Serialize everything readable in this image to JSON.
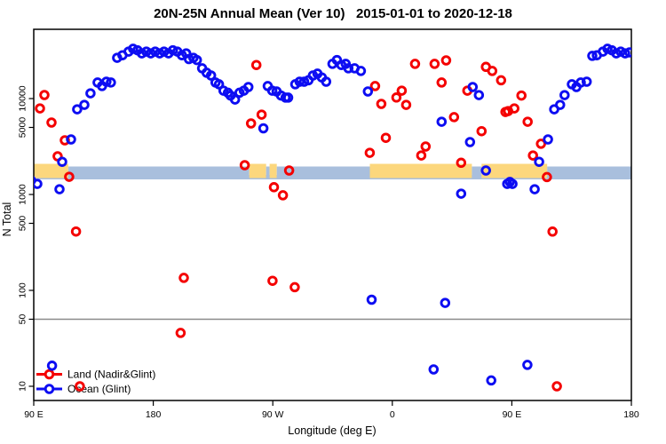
{
  "title": "20N-25N Annual Mean (Ver 10)   2015-01-01 to 2020-12-18",
  "legend": {
    "items": [
      {
        "label": "Land (Nadir&Glint)",
        "color": "#f40000"
      },
      {
        "label": "Ocean (Glint)",
        "color": "#0d0df2"
      }
    ]
  },
  "chart_data": {
    "type": "scatter",
    "title": "20N-25N Annual Mean (Ver 10)   2015-01-01 to 2020-12-18",
    "xlabel": "Longitude (deg E)",
    "ylabel": "N Total",
    "y_scale": "log",
    "ylim": [
      9,
      40000
    ],
    "xlim_deg_continuous": [
      90,
      540
    ],
    "grid": false,
    "legend_position": "bottom-left",
    "x_ticks": [
      {
        "label": "90 E",
        "lon": 90
      },
      {
        "label": "180",
        "lon": 180
      },
      {
        "label": "90 W",
        "lon": 270
      },
      {
        "label": "0",
        "lon": 360
      },
      {
        "label": "90 E",
        "lon": 450
      },
      {
        "label": "180",
        "lon": 540
      }
    ],
    "y_ticks": [
      {
        "label": "10",
        "value": 10
      },
      {
        "label": "50",
        "value": 50
      },
      {
        "label": "100",
        "value": 100
      },
      {
        "label": "500",
        "value": 500
      },
      {
        "label": "1000",
        "value": 1000
      },
      {
        "label": "5000",
        "value": 5000
      },
      {
        "label": "10000",
        "value": 10000
      }
    ],
    "reference_line": {
      "value": 50,
      "color": "#8a8a8a"
    },
    "surface_band": {
      "description": "land/ocean mask strip near N=1500-2000",
      "land_color": "#fcd77d",
      "ocean_color": "#a9bfdd",
      "value_top": 2000,
      "value_bottom": 1480,
      "segments": [
        {
          "type": "land",
          "from": 90,
          "to": 116
        },
        {
          "type": "ocean",
          "from": 116,
          "to": 252.3
        },
        {
          "type": "land",
          "from": 252.3,
          "to": 265
        },
        {
          "type": "ocean",
          "from": 265,
          "to": 267.6
        },
        {
          "type": "land",
          "from": 267.6,
          "to": 273
        },
        {
          "type": "ocean",
          "from": 273,
          "to": 343.1
        },
        {
          "type": "land",
          "from": 343.1,
          "to": 419.9
        },
        {
          "type": "ocean",
          "from": 419.9,
          "to": 427.2
        },
        {
          "type": "land",
          "from": 427.2,
          "to": 476.6
        },
        {
          "type": "ocean",
          "from": 476.6,
          "to": 540
        }
      ]
    },
    "series": [
      {
        "name": "Land (Nadir&Glint)",
        "color": "#f40000",
        "points": [
          [
            94.7,
            7900
          ],
          [
            98,
            10900
          ],
          [
            103.4,
            5620
          ],
          [
            108,
            2500
          ],
          [
            113.4,
            3670
          ],
          [
            116.7,
            1530
          ],
          [
            121.8,
            411
          ],
          [
            124.7,
            10
          ],
          [
            200.6,
            36
          ],
          [
            203,
            135
          ],
          [
            248.9,
            2020
          ],
          [
            253.6,
            5500
          ],
          [
            257.6,
            22400
          ],
          [
            261.6,
            6800
          ],
          [
            269.8,
            126
          ],
          [
            270.9,
            1190
          ],
          [
            277.6,
            980
          ],
          [
            282.3,
            1780
          ],
          [
            286.5,
            108
          ],
          [
            343,
            2720
          ],
          [
            347,
            13500
          ],
          [
            351.7,
            8800
          ],
          [
            355.1,
            3900
          ],
          [
            363.1,
            10250
          ],
          [
            367.1,
            12100
          ],
          [
            370.4,
            8600
          ],
          [
            377.1,
            23000
          ],
          [
            381.8,
            2550
          ],
          [
            385.1,
            3160
          ],
          [
            391.8,
            23000
          ],
          [
            397.1,
            14700
          ],
          [
            400.5,
            25000
          ],
          [
            406.5,
            6400
          ],
          [
            411.8,
            2140
          ],
          [
            416.5,
            12100
          ],
          [
            427.2,
            4570
          ],
          [
            430.5,
            21400
          ],
          [
            435.2,
            19400
          ],
          [
            441.9,
            15500
          ],
          [
            445.2,
            7240
          ],
          [
            447.2,
            7400
          ],
          [
            451.9,
            7900
          ],
          [
            457.2,
            10760
          ],
          [
            461.9,
            5730
          ],
          [
            465.9,
            2550
          ],
          [
            471.9,
            3380
          ],
          [
            476.4,
            1520
          ],
          [
            480.6,
            410
          ],
          [
            483.9,
            10
          ]
        ]
      },
      {
        "name": "Ocean (Glint)",
        "color": "#0d0df2",
        "points": [
          [
            88,
            1400
          ],
          [
            92.7,
            1290
          ],
          [
            103.8,
            16.4
          ],
          [
            109.4,
            1135
          ],
          [
            111.4,
            2190
          ],
          [
            118.1,
            3750
          ],
          [
            122.7,
            7730
          ],
          [
            128.1,
            8600
          ],
          [
            132.7,
            11350
          ],
          [
            138.1,
            14700
          ],
          [
            141.4,
            13500
          ],
          [
            144.7,
            15000
          ],
          [
            148.1,
            14700
          ],
          [
            152.8,
            26600
          ],
          [
            156.8,
            28300
          ],
          [
            161.4,
            30900
          ],
          [
            164.8,
            33100
          ],
          [
            168.1,
            31900
          ],
          [
            171.4,
            29600
          ],
          [
            174.8,
            30900
          ],
          [
            178.1,
            29600
          ],
          [
            181.5,
            30900
          ],
          [
            184.8,
            29600
          ],
          [
            188.1,
            30900
          ],
          [
            191.5,
            29600
          ],
          [
            194.8,
            31900
          ],
          [
            198.1,
            30900
          ],
          [
            201.5,
            28300
          ],
          [
            204.8,
            29600
          ],
          [
            206.8,
            25800
          ],
          [
            210.2,
            26600
          ],
          [
            212.8,
            25200
          ],
          [
            216.8,
            20700
          ],
          [
            220.2,
            18600
          ],
          [
            223.5,
            17400
          ],
          [
            226.9,
            14700
          ],
          [
            229.5,
            14100
          ],
          [
            232.9,
            12100
          ],
          [
            236.2,
            11500
          ],
          [
            238.2,
            10760
          ],
          [
            241.6,
            9770
          ],
          [
            244.9,
            11500
          ],
          [
            248.2,
            12100
          ],
          [
            251.6,
            13200
          ],
          [
            262.9,
            4900
          ],
          [
            266.2,
            13500
          ],
          [
            269.6,
            12100
          ],
          [
            272.9,
            11860
          ],
          [
            276.2,
            10760
          ],
          [
            279.6,
            10230
          ],
          [
            281.6,
            10230
          ],
          [
            286.9,
            14100
          ],
          [
            290.2,
            15000
          ],
          [
            293.6,
            15000
          ],
          [
            296.9,
            15500
          ],
          [
            300.2,
            17400
          ],
          [
            303.6,
            18200
          ],
          [
            306.9,
            16600
          ],
          [
            310.2,
            15000
          ],
          [
            314.9,
            23000
          ],
          [
            318.3,
            25200
          ],
          [
            321.6,
            22400
          ],
          [
            324.9,
            23000
          ],
          [
            326.9,
            20700
          ],
          [
            331.6,
            20700
          ],
          [
            336.3,
            19400
          ],
          [
            341.6,
            11860
          ],
          [
            344.4,
            80
          ],
          [
            391.1,
            15
          ],
          [
            397.1,
            5730
          ],
          [
            399.8,
            74
          ],
          [
            411.8,
            1020
          ],
          [
            418.5,
            3520
          ],
          [
            420.5,
            13200
          ],
          [
            425.2,
            10870
          ],
          [
            430.5,
            1780
          ],
          [
            434.5,
            11.5
          ],
          [
            446.5,
            1290
          ],
          [
            448.5,
            1350
          ],
          [
            450.5,
            1290
          ],
          [
            461.7,
            16.7
          ],
          [
            467.2,
            1135
          ],
          [
            470.5,
            2190
          ],
          [
            477.2,
            3750
          ],
          [
            481.9,
            7730
          ],
          [
            486.4,
            8600
          ],
          [
            489.7,
            10870
          ],
          [
            495.2,
            14100
          ],
          [
            498.6,
            13200
          ],
          [
            501.9,
            14700
          ],
          [
            506.4,
            15000
          ],
          [
            510.6,
            27900
          ],
          [
            514,
            28300
          ],
          [
            518.6,
            30900
          ],
          [
            522,
            33100
          ],
          [
            525.3,
            31900
          ],
          [
            528.6,
            29600
          ],
          [
            532,
            30900
          ],
          [
            535.3,
            29600
          ],
          [
            538.6,
            30300
          ]
        ]
      }
    ]
  }
}
